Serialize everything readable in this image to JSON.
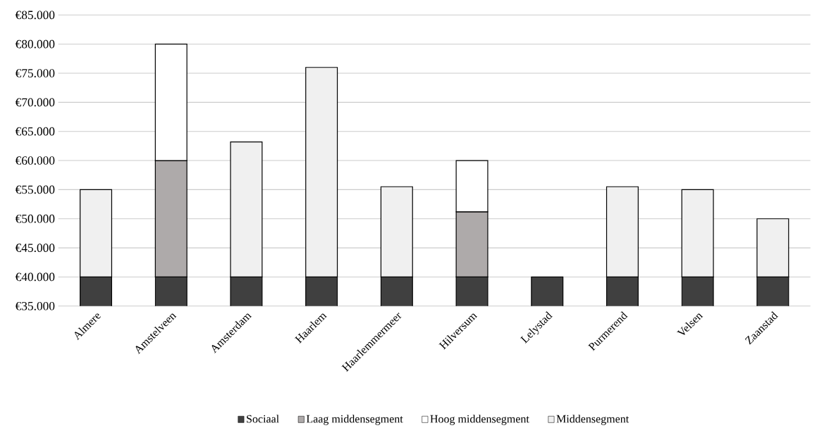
{
  "chart_data": {
    "type": "bar",
    "stacked": true,
    "categories": [
      "Almere",
      "Amstelveen",
      "Amsterdam",
      "Haarlem",
      "Haarlemmermeer",
      "Hilversum",
      "Lelystad",
      "Purmerend",
      "Velsen",
      "Zaanstad"
    ],
    "series": [
      {
        "name": "Sociaal",
        "color": "#404040",
        "values": [
          40000,
          40000,
          40000,
          40000,
          40000,
          40000,
          40000,
          40000,
          40000,
          40000
        ]
      },
      {
        "name": "Laag middensegment",
        "color": "#aeaaaa",
        "values": [
          null,
          20000,
          null,
          null,
          null,
          11200,
          null,
          null,
          null,
          null
        ],
        "base": [
          null,
          40000,
          null,
          null,
          null,
          40000,
          null,
          null,
          null,
          null
        ]
      },
      {
        "name": "Hoog middensegment",
        "color": "#ffffff",
        "values": [
          null,
          20000,
          null,
          null,
          null,
          8800,
          null,
          null,
          null,
          null
        ],
        "base": [
          null,
          60000,
          null,
          null,
          null,
          51200,
          null,
          null,
          null,
          null
        ]
      },
      {
        "name": "Middensegment",
        "color": "#f0f0f0",
        "values": [
          15000,
          null,
          23200,
          36000,
          15500,
          null,
          null,
          15500,
          15000,
          10000
        ],
        "base": [
          40000,
          null,
          40000,
          40000,
          40000,
          null,
          null,
          40000,
          40000,
          40000
        ]
      }
    ],
    "ylim": [
      35000,
      85000
    ],
    "yticks": [
      {
        "value": 35000,
        "label": "€35.000"
      },
      {
        "value": 40000,
        "label": "€40.000"
      },
      {
        "value": 45000,
        "label": "€45.000"
      },
      {
        "value": 50000,
        "label": "€50.000"
      },
      {
        "value": 55000,
        "label": "€55.000"
      },
      {
        "value": 60000,
        "label": "€60.000"
      },
      {
        "value": 65000,
        "label": "€65.000"
      },
      {
        "value": 70000,
        "label": "€70.000"
      },
      {
        "value": 75000,
        "label": "€75.000"
      },
      {
        "value": 80000,
        "label": "€80.000"
      },
      {
        "value": 85000,
        "label": "€85.000"
      }
    ],
    "grid": "y",
    "legend": "bottom"
  }
}
